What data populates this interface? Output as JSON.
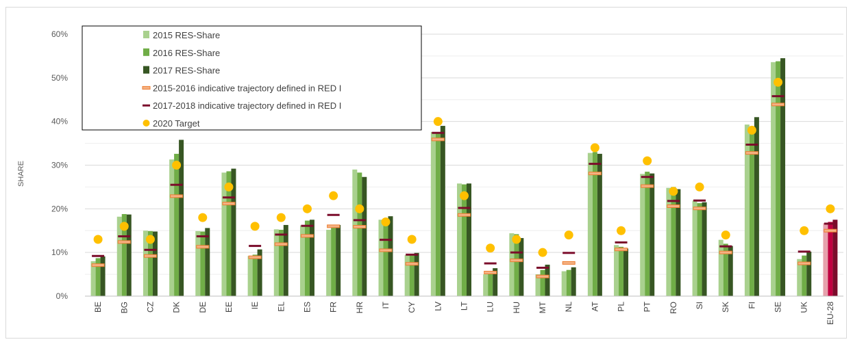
{
  "chart_data": {
    "type": "bar",
    "ylabel": "SHARE",
    "ylim": [
      0,
      60
    ],
    "yticks": [
      "0%",
      "10%",
      "20%",
      "30%",
      "40%",
      "50%",
      "60%"
    ],
    "grid": true,
    "legend_position": "top-left",
    "categories": [
      "BE",
      "BG",
      "CZ",
      "DK",
      "DE",
      "EE",
      "IE",
      "EL",
      "ES",
      "FR",
      "HR",
      "IT",
      "CY",
      "LV",
      "LT",
      "LU",
      "HU",
      "MT",
      "NL",
      "AT",
      "PL",
      "PT",
      "RO",
      "SI",
      "SK",
      "FI",
      "SE",
      "UK",
      "EU-28"
    ],
    "series": [
      {
        "name": "2015 RES-Share",
        "kind": "bar",
        "color": "#a9d18e",
        "values": [
          8.0,
          18.2,
          15.0,
          31.3,
          14.9,
          28.3,
          9.2,
          15.3,
          16.2,
          15.2,
          29.0,
          17.5,
          9.4,
          37.6,
          25.8,
          5.0,
          14.4,
          5.0,
          5.7,
          32.8,
          11.7,
          28.0,
          24.8,
          21.9,
          12.9,
          39.3,
          53.6,
          8.5,
          16.7
        ]
      },
      {
        "name": "2016 RES-Share",
        "kind": "bar",
        "color": "#70ad47",
        "values": [
          8.7,
          18.8,
          14.9,
          32.6,
          14.8,
          28.6,
          9.5,
          15.2,
          17.3,
          16.0,
          28.3,
          17.4,
          9.3,
          37.2,
          25.6,
          5.4,
          14.2,
          6.0,
          6.0,
          33.0,
          11.3,
          28.5,
          25.0,
          21.3,
          12.0,
          38.7,
          53.8,
          9.3,
          17.0
        ]
      },
      {
        "name": "2017 RES-Share",
        "kind": "bar",
        "color": "#375623",
        "values": [
          9.1,
          18.7,
          14.8,
          35.8,
          15.6,
          29.2,
          10.7,
          16.3,
          17.5,
          16.3,
          27.3,
          18.3,
          9.9,
          39.0,
          25.8,
          6.4,
          13.3,
          7.2,
          6.6,
          32.6,
          10.9,
          28.1,
          24.5,
          21.5,
          11.5,
          41.0,
          54.5,
          10.2,
          17.5
        ]
      },
      {
        "name": "2015-2016 indicative trajectory defined in RED I",
        "kind": "marker",
        "color": "#ed7d31",
        "values": [
          7.1,
          12.4,
          9.2,
          22.9,
          11.3,
          21.2,
          8.9,
          11.9,
          13.8,
          16.0,
          15.9,
          10.5,
          7.4,
          35.9,
          18.6,
          5.4,
          8.2,
          4.5,
          7.6,
          28.1,
          10.7,
          25.2,
          20.6,
          20.1,
          10.0,
          32.8,
          43.9,
          7.5,
          15.0
        ]
      },
      {
        "name": "2017-2018 indicative trajectory defined in RED I",
        "kind": "marker",
        "color": "#7b0c2b",
        "values": [
          9.2,
          13.7,
          10.6,
          25.5,
          13.7,
          22.6,
          11.5,
          14.1,
          16.1,
          18.6,
          17.4,
          12.9,
          9.5,
          37.4,
          20.2,
          7.5,
          10.0,
          6.5,
          9.9,
          30.3,
          12.3,
          27.3,
          21.8,
          21.9,
          11.4,
          34.7,
          45.8,
          10.2,
          16.6
        ]
      },
      {
        "name": "2020 Target",
        "kind": "dot",
        "color": "#ffc000",
        "values": [
          13,
          16,
          13,
          30,
          18,
          25,
          16,
          18,
          20,
          23,
          20,
          17,
          13,
          40,
          23,
          11,
          13,
          10,
          14,
          34,
          15,
          31,
          24,
          25,
          14,
          38,
          49,
          15,
          20
        ]
      }
    ],
    "highlight": {
      "category": "EU-28",
      "colors": [
        "#e6a1ac",
        "#c00040",
        "#7b0c2b"
      ]
    }
  }
}
